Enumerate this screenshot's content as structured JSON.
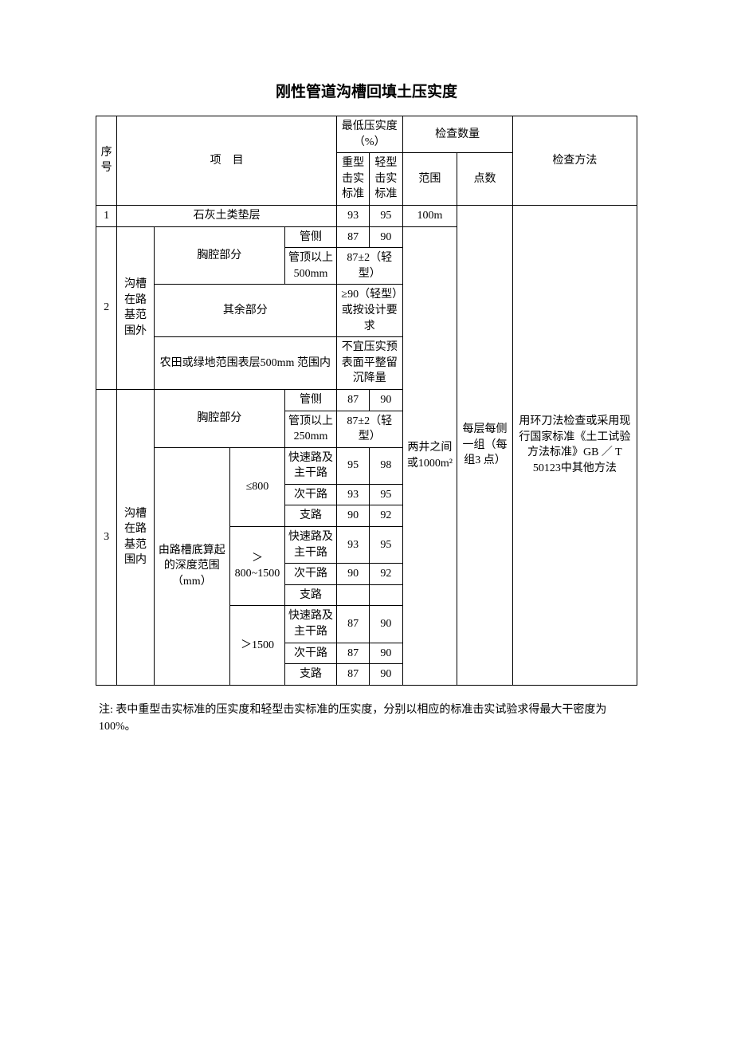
{
  "title": "刚性管道沟槽回填土压实度",
  "header": {
    "seq": "序号",
    "item": "项　目",
    "compaction_header": "最低压实度（%）",
    "heavy": "重型击实标准",
    "light": "轻型击实标准",
    "check_qty": "检查数量",
    "range": "范围",
    "points": "点数",
    "method": "检查方法"
  },
  "row1": {
    "seq": "1",
    "item": "石灰土类垫层",
    "heavy": "93",
    "light": "95",
    "range": "100m"
  },
  "range_merged": "两井之间或1000m²",
  "points_merged": "每层每侧一组（每组3 点）",
  "method_merged": "用环刀法检查或采用现行国家标准《土工试验方法标准》GB ／ T 50123中其他方法",
  "row2": {
    "seq": "2",
    "cat": "沟槽在路基范围外",
    "chest": "胸腔部分",
    "side": "管侧",
    "side_heavy": "87",
    "side_light": "90",
    "top500": "管顶以上500mm",
    "top500_val": "87±2（轻型）",
    "other": "其余部分",
    "other_val": "≥90（轻型）或按设计要求",
    "farmland": "农田或绿地范围表层500mm 范围内",
    "farmland_val": "不宜压实预表面平整留沉降量"
  },
  "row3": {
    "seq": "3",
    "cat": "沟槽在路基范围内",
    "chest": "胸腔部分",
    "side": "管侧",
    "side_heavy": "87",
    "side_light": "90",
    "top250": "管顶以上250mm",
    "top250_val": "87±2（轻型）",
    "depth_label": "由路槽底算起的深度范围（mm）",
    "d1": "≤800",
    "d1r1": {
      "name": "快速路及主干路",
      "h": "95",
      "l": "98"
    },
    "d1r2": {
      "name": "次干路",
      "h": "93",
      "l": "95"
    },
    "d1r3": {
      "name": "支路",
      "h": "90",
      "l": "92"
    },
    "d2": "＞800~1500",
    "d2r1": {
      "name": "快速路及主干路",
      "h": "93",
      "l": "95"
    },
    "d2r2": {
      "name": "次干路",
      "h": "90",
      "l": "92"
    },
    "d2r3": {
      "name": "支路",
      "h": "",
      "l": ""
    },
    "d3": "＞1500",
    "d3r1": {
      "name": "快速路及主干路",
      "h": "87",
      "l": "90"
    },
    "d3r2": {
      "name": "次干路",
      "h": "87",
      "l": "90"
    },
    "d3r3": {
      "name": "支路",
      "h": "87",
      "l": "90"
    }
  },
  "note": "注: 表中重型击实标准的压实度和轻型击实标准的压实度，分别以相应的标准击实试验求得最大干密度为 100%。"
}
